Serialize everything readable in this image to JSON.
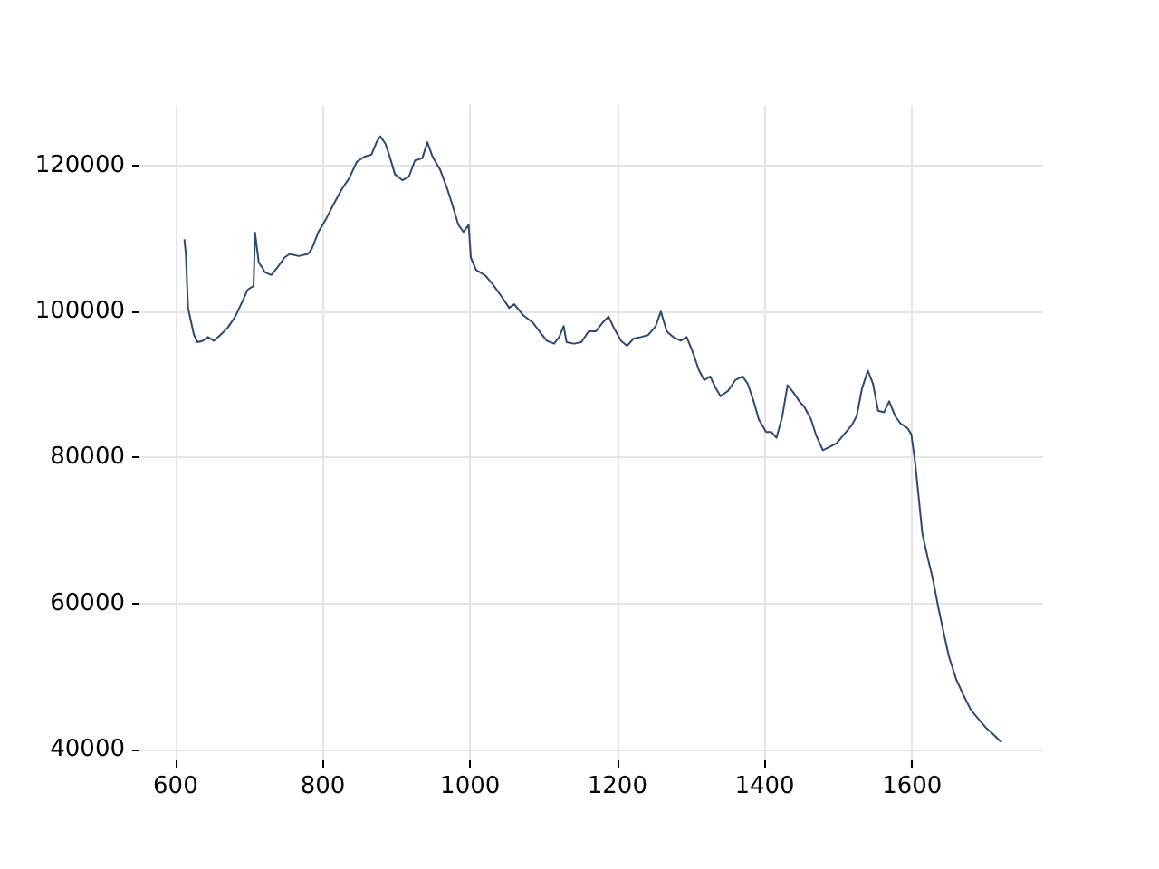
{
  "chart_data": {
    "type": "line",
    "x": [
      612,
      614,
      617,
      625,
      630,
      637,
      644,
      652,
      661,
      671,
      681,
      689,
      698,
      706,
      708,
      713,
      718,
      721,
      730,
      738,
      748,
      755,
      767,
      780,
      785,
      794,
      804,
      814,
      826,
      836,
      846,
      856,
      866,
      873,
      878,
      885,
      890,
      898,
      908,
      917,
      925,
      935,
      942,
      949,
      959,
      969,
      976,
      984,
      991,
      998,
      1001,
      1008,
      1021,
      1031,
      1043,
      1053,
      1060,
      1072,
      1085,
      1094,
      1104,
      1114,
      1121,
      1127,
      1131,
      1141,
      1151,
      1161,
      1171,
      1180,
      1188,
      1195,
      1205,
      1213,
      1222,
      1232,
      1242,
      1252,
      1259,
      1267,
      1276,
      1286,
      1294,
      1301,
      1311,
      1318,
      1326,
      1333,
      1340,
      1350,
      1360,
      1370,
      1377,
      1385,
      1392,
      1402,
      1409,
      1416,
      1424,
      1431,
      1439,
      1447,
      1454,
      1463,
      1470,
      1479,
      1489,
      1498,
      1508,
      1518,
      1525,
      1532,
      1540,
      1547,
      1554,
      1562,
      1569,
      1577,
      1584,
      1594,
      1599,
      1604,
      1609,
      1614,
      1621,
      1628,
      1636,
      1643,
      1650,
      1660,
      1670,
      1680,
      1690,
      1700,
      1709,
      1719,
      1722
    ],
    "series": [
      {
        "color": "#2d4a6e",
        "values": [
          109900,
          107900,
          100500,
          96800,
          95800,
          96000,
          96500,
          96000,
          96800,
          97800,
          99300,
          101000,
          103000,
          103500,
          110800,
          106700,
          106000,
          105400,
          105000,
          106000,
          107400,
          107900,
          107600,
          107900,
          108600,
          110900,
          112600,
          114600,
          116800,
          118300,
          120500,
          121200,
          121500,
          123200,
          124000,
          123000,
          121500,
          118800,
          118000,
          118500,
          120700,
          121000,
          123200,
          121200,
          119500,
          116800,
          114600,
          111900,
          110900,
          111900,
          107400,
          105700,
          104900,
          103700,
          102000,
          100500,
          101000,
          99500,
          98500,
          97300,
          96000,
          95600,
          96500,
          98000,
          95800,
          95600,
          95800,
          97300,
          97300,
          98500,
          99300,
          97800,
          96000,
          95300,
          96300,
          96500,
          96800,
          98000,
          100000,
          97300,
          96500,
          96000,
          96500,
          94800,
          91900,
          90600,
          91100,
          89600,
          88400,
          89100,
          90600,
          91100,
          90100,
          87700,
          85200,
          83500,
          83500,
          82700,
          85700,
          89900,
          88900,
          87700,
          86900,
          85200,
          83000,
          81000,
          81500,
          82000,
          83200,
          84400,
          85700,
          89400,
          91900,
          90100,
          86400,
          86200,
          87700,
          85700,
          84700,
          84000,
          83200,
          79500,
          74600,
          69600,
          66400,
          63500,
          59300,
          56000,
          52800,
          49600,
          47400,
          45400,
          44200,
          43000,
          42200,
          41200,
          41000
        ]
      }
    ],
    "xlim": [
      551,
      1778
    ],
    "ylim": [
      38500,
      128300
    ],
    "xticks": [
      600,
      800,
      1000,
      1200,
      1400,
      1600
    ],
    "yticks": [
      40000,
      60000,
      80000,
      100000,
      120000
    ],
    "grid": true,
    "marker": "none",
    "line_style": "solid"
  }
}
